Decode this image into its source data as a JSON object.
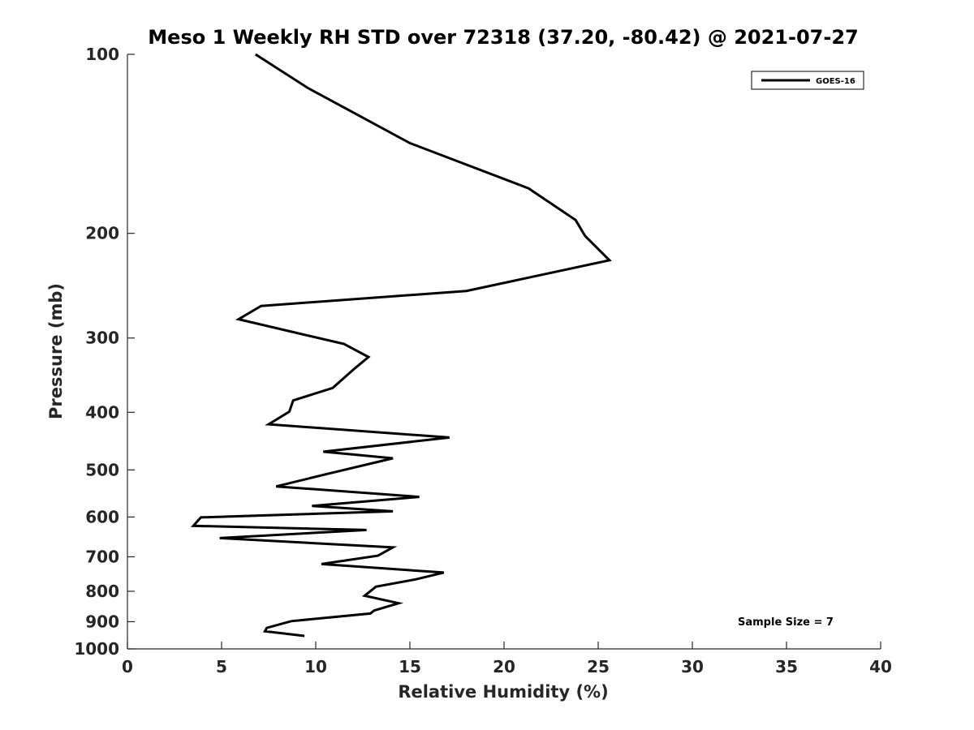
{
  "chart_data": {
    "type": "line",
    "title": "Meso 1 Weekly RH STD over 72318 (37.20, -80.42) @ 2021-07-27",
    "xlabel": "Relative Humidity (%)",
    "ylabel": "Pressure (mb)",
    "xlim": [
      0,
      40
    ],
    "ylim": [
      100,
      1000
    ],
    "y_scale": "log",
    "y_reversed": true,
    "grid": false,
    "legend_position": "top-right",
    "xticks": [
      "0",
      "5",
      "10",
      "15",
      "20",
      "25",
      "30",
      "35",
      "40"
    ],
    "yticks": [
      "100",
      "200",
      "300",
      "400",
      "500",
      "600",
      "700",
      "800",
      "900",
      "1000"
    ],
    "annotation": "Sample Size = 7",
    "series": [
      {
        "name": "GOES-16",
        "color": "#000000",
        "x": [
          6.8,
          9.6,
          15.0,
          21.3,
          23.8,
          24.3,
          25.6,
          18.0,
          7.1,
          5.9,
          11.5,
          12.8,
          12.0,
          10.9,
          8.8,
          8.6,
          7.5,
          17.1,
          10.4,
          14.1,
          10.7,
          7.9,
          15.5,
          9.8,
          14.1,
          3.9,
          3.5,
          12.7,
          4.9,
          14.1,
          13.3,
          10.3,
          16.8,
          15.3,
          13.2,
          12.6,
          14.4,
          13.1,
          12.9,
          8.7,
          7.4,
          7.3,
          9.4
        ],
        "y": [
          100,
          114,
          141,
          168,
          190,
          202,
          222,
          250,
          265,
          279,
          307,
          323,
          339,
          364,
          382,
          399,
          419,
          441,
          466,
          478,
          507,
          533,
          555,
          575,
          587,
          601,
          621,
          631,
          651,
          675,
          697,
          720,
          744,
          764,
          786,
          814,
          838,
          862,
          872,
          898,
          922,
          934,
          951
        ]
      }
    ]
  }
}
